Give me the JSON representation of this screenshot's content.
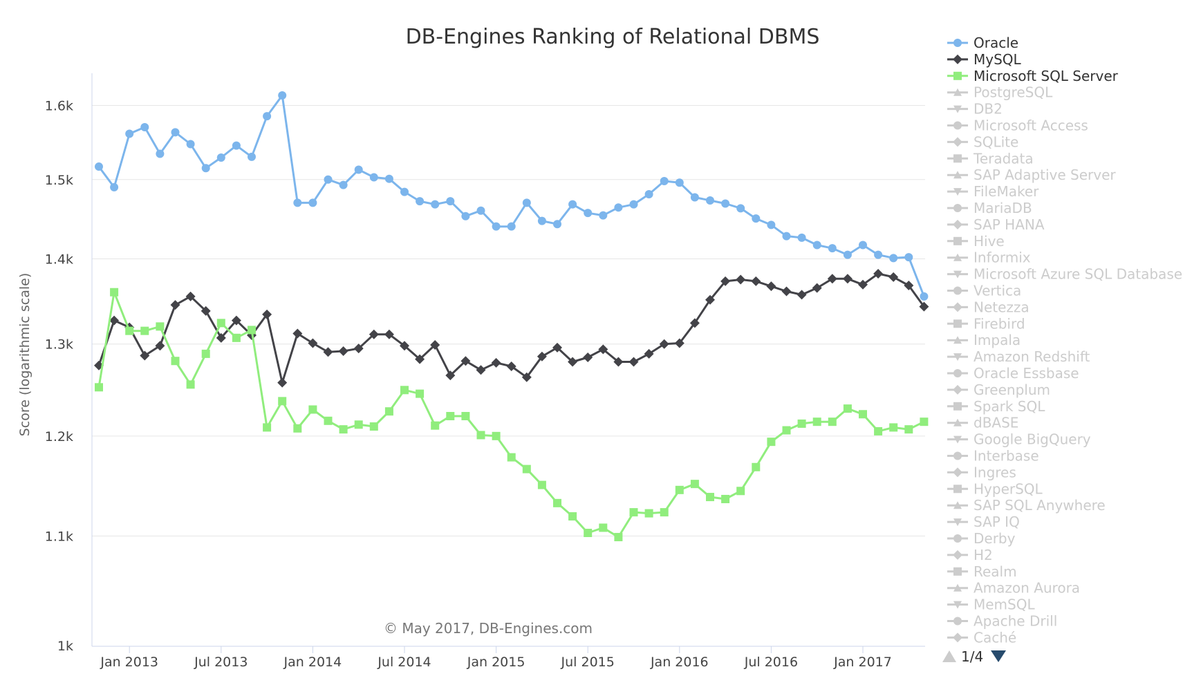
{
  "chart_data": {
    "type": "line",
    "title": "DB-Engines Ranking of Relational DBMS",
    "ylabel": "Score (logarithmic scale)",
    "xlabel": "",
    "yscale": "log",
    "ylim": [
      1000,
      1650
    ],
    "y_ticks": [
      {
        "value": 1000,
        "label": "1k"
      },
      {
        "value": 1100,
        "label": "1.1k"
      },
      {
        "value": 1200,
        "label": "1.2k"
      },
      {
        "value": 1300,
        "label": "1.3k"
      },
      {
        "value": 1400,
        "label": "1.4k"
      },
      {
        "value": 1500,
        "label": "1.5k"
      },
      {
        "value": 1600,
        "label": "1.6k"
      }
    ],
    "x_start": "Nov 2012",
    "x_ticks": [
      {
        "index": 2,
        "label": "Jan 2013"
      },
      {
        "index": 8,
        "label": "Jul 2013"
      },
      {
        "index": 14,
        "label": "Jan 2014"
      },
      {
        "index": 20,
        "label": "Jul 2014"
      },
      {
        "index": 26,
        "label": "Jan 2015"
      },
      {
        "index": 32,
        "label": "Jul 2015"
      },
      {
        "index": 38,
        "label": "Jan 2016"
      },
      {
        "index": 44,
        "label": "Jul 2016"
      },
      {
        "index": 50,
        "label": "Jan 2017"
      }
    ],
    "series": [
      {
        "name": "Oracle",
        "color": "#7cb5ec",
        "marker": "circle",
        "values": [
          1517,
          1490,
          1561,
          1570,
          1534,
          1563,
          1547,
          1515,
          1529,
          1545,
          1530,
          1585,
          1614,
          1470,
          1470,
          1500,
          1493,
          1513,
          1503,
          1501,
          1484,
          1472,
          1468,
          1472,
          1453,
          1460,
          1440,
          1440,
          1470,
          1447,
          1443,
          1468,
          1457,
          1454,
          1464,
          1468,
          1481,
          1498,
          1496,
          1477,
          1473,
          1469,
          1463,
          1450,
          1442,
          1428,
          1426,
          1417,
          1413,
          1405,
          1417,
          1405,
          1401,
          1402,
          1355
        ]
      },
      {
        "name": "MySQL",
        "color": "#434348",
        "marker": "diamond",
        "values": [
          1276,
          1327,
          1319,
          1287,
          1298,
          1345,
          1355,
          1338,
          1307,
          1327,
          1310,
          1334,
          1257,
          1312,
          1301,
          1291,
          1292,
          1295,
          1311,
          1311,
          1298,
          1283,
          1299,
          1265,
          1281,
          1271,
          1279,
          1275,
          1263,
          1286,
          1296,
          1280,
          1285,
          1294,
          1280,
          1280,
          1289,
          1300,
          1301,
          1324,
          1351,
          1373,
          1375,
          1373,
          1367,
          1361,
          1357,
          1365,
          1376,
          1376,
          1369,
          1382,
          1378,
          1368,
          1343
        ]
      },
      {
        "name": "Microsoft SQL Server",
        "color": "#90ed7d",
        "marker": "square",
        "values": [
          1252,
          1360,
          1315,
          1315,
          1320,
          1281,
          1255,
          1289,
          1324,
          1307,
          1316,
          1209,
          1237,
          1208,
          1228,
          1216,
          1207,
          1212,
          1210,
          1226,
          1249,
          1245,
          1211,
          1221,
          1221,
          1201,
          1200,
          1178,
          1166,
          1150,
          1132,
          1119,
          1103,
          1108,
          1099,
          1123,
          1122,
          1123,
          1145,
          1151,
          1138,
          1136,
          1144,
          1168,
          1194,
          1206,
          1213,
          1215,
          1215,
          1229,
          1223,
          1205,
          1209,
          1207,
          1215
        ]
      }
    ],
    "hidden_series": [
      "PostgreSQL",
      "DB2",
      "Microsoft Access",
      "SQLite",
      "Teradata",
      "SAP Adaptive Server",
      "FileMaker",
      "MariaDB",
      "SAP HANA",
      "Hive",
      "Informix",
      "Microsoft Azure SQL Database",
      "Vertica",
      "Netezza",
      "Firebird",
      "Impala",
      "Amazon Redshift",
      "Oracle Essbase",
      "Greenplum",
      "Spark SQL",
      "dBASE",
      "Google BigQuery",
      "Interbase",
      "Ingres",
      "HyperSQL",
      "SAP SQL Anywhere",
      "SAP IQ",
      "Derby",
      "H2",
      "Realm",
      "Amazon Aurora",
      "MemSQL",
      "Apache Drill",
      "Caché"
    ],
    "hidden_markers": [
      "triangle",
      "triangle-down",
      "circle",
      "diamond",
      "square"
    ],
    "legend_position": "right",
    "credit": "© May 2017, DB-Engines.com",
    "legend_pager": "1/4",
    "colors": {
      "grid": "#e6e6e6",
      "axis": "#ccd6eb",
      "hidden": "#cccccc",
      "pager_up": "#cccccc",
      "pager_down": "#274b6d",
      "text": "#333333"
    }
  }
}
